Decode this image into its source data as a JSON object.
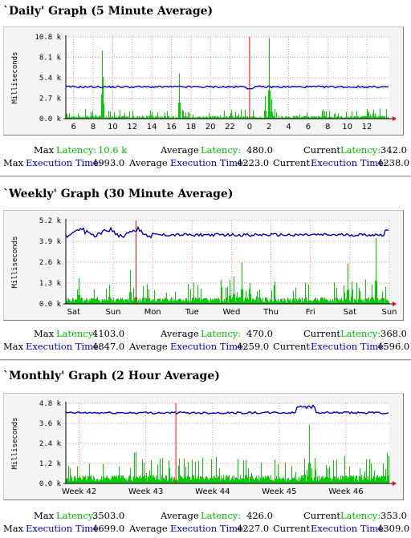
{
  "graphs": [
    {
      "title": "`Daily' Graph (5 Minute Average)",
      "stats": {
        "max_label": "Max",
        "avg_label": "Average",
        "cur_label": "Current",
        "latency_label": "Latency:",
        "exec_label": "Execution Time:",
        "max_latency": "10.6 k",
        "avg_latency": "480.0",
        "cur_latency": "342.0",
        "max_exec": "4993.0",
        "avg_exec": "4223.0",
        "cur_exec": "4238.0"
      }
    },
    {
      "title": "`Weekly' Graph (30 Minute Average)",
      "stats": {
        "max_label": "Max",
        "avg_label": "Average",
        "cur_label": "Current",
        "latency_label": "Latency:",
        "exec_label": "Execution Time:",
        "max_latency": "4103.0",
        "avg_latency": "470.0",
        "cur_latency": "368.0",
        "max_exec": "4847.0",
        "avg_exec": "4259.0",
        "cur_exec": "4596.0"
      }
    },
    {
      "title": "`Monthly' Graph (2 Hour Average)",
      "stats": {
        "max_label": "Max",
        "avg_label": "Average",
        "cur_label": "Current",
        "latency_label": "Latency:",
        "exec_label": "Execution Time:",
        "max_latency": "3503.0",
        "avg_latency": "426.0",
        "cur_latency": "353.0",
        "max_exec": "4699.0",
        "avg_exec": "4227.0",
        "cur_exec": "4309.0"
      }
    }
  ],
  "chart_data": [
    {
      "type": "area",
      "ylabel": "Milliseconds",
      "ylim": [
        0,
        10800
      ],
      "y_ticks": [
        "0.0 k",
        "2.7 k",
        "5.4 k",
        "8.1 k",
        "10.8 k"
      ],
      "categories": [
        "6",
        "8",
        "10",
        "12",
        "14",
        "16",
        "18",
        "20",
        "22",
        "0",
        "2",
        "4",
        "6",
        "8",
        "10",
        "12"
      ],
      "x_range": [
        5.2,
        38.3
      ],
      "x_tick_values": [
        6,
        8,
        10,
        12,
        14,
        16,
        18,
        20,
        22,
        24,
        26,
        28,
        30,
        32,
        34,
        36
      ],
      "now_marker": 24,
      "colors": {
        "latency": "#00cc00",
        "exec": "#0000bb",
        "marker": "#ff0000",
        "grid": "#ff7070"
      },
      "series": [
        {
          "name": "Latency",
          "peaks": [
            [
              8.9,
              9000
            ],
            [
              9.0,
              5500
            ],
            [
              16.8,
              6000
            ],
            [
              26.0,
              10600
            ],
            [
              26.2,
              2600
            ],
            [
              7.9,
              1000
            ],
            [
              14.0,
              900
            ],
            [
              13.8,
              1100
            ],
            [
              15.3,
              800
            ],
            [
              21.0,
              400
            ],
            [
              25.6,
              3000
            ]
          ],
          "baseline": 300
        },
        {
          "name": "Execution Time",
          "base": 4200,
          "noise": 250,
          "dip_at": 24,
          "dip_value": 3950
        }
      ],
      "grid": true
    },
    {
      "type": "area",
      "ylabel": "Milliseconds",
      "ylim": [
        0,
        5200
      ],
      "y_ticks": [
        "0.0 k",
        "1.3 k",
        "2.6 k",
        "3.9 k",
        "5.2 k"
      ],
      "categories": [
        "Sat",
        "Sun",
        "Mon",
        "Tue",
        "Wed",
        "Thu",
        "Fri",
        "Sat",
        "Sun"
      ],
      "x_range": [
        -0.2,
        8.0
      ],
      "x_tick_values": [
        0,
        1,
        2,
        3,
        4,
        5,
        6,
        7,
        8
      ],
      "now_marker": 1.58,
      "colors": {
        "latency": "#00cc00",
        "exec": "#0000bb",
        "marker": "#ff0000",
        "grid": "#ff7070"
      },
      "series": [
        {
          "name": "Latency",
          "peaks": [
            [
              0.12,
              1600
            ],
            [
              0.9,
              1200
            ],
            [
              1.42,
              2100
            ],
            [
              1.58,
              1200
            ],
            [
              1.9,
              900
            ],
            [
              2.35,
              700
            ],
            [
              3.95,
              1500
            ],
            [
              4.05,
              1700
            ],
            [
              4.25,
              2600
            ],
            [
              5.55,
              800
            ],
            [
              6.65,
              1000
            ],
            [
              6.95,
              2500
            ],
            [
              7.05,
              1400
            ],
            [
              7.55,
              1200
            ],
            [
              7.65,
              4100
            ],
            [
              7.25,
              800
            ]
          ],
          "baseline": 350
        },
        {
          "name": "Execution Time",
          "base": 4300,
          "noise": 180,
          "wobble_until": 2.0,
          "wobble": 350,
          "end_value": 4600
        }
      ],
      "grid": true
    },
    {
      "type": "area",
      "ylabel": "Milliseconds",
      "ylim": [
        0,
        4800
      ],
      "y_ticks": [
        "0.0 k",
        "1.2 k",
        "2.4 k",
        "3.6 k",
        "4.8 k"
      ],
      "categories": [
        "Week 42",
        "Week 43",
        "Week 44",
        "Week 45",
        "Week 46"
      ],
      "x_range": [
        -0.2,
        4.65
      ],
      "x_tick_values": [
        0,
        1,
        2,
        3,
        4
      ],
      "now_marker": 1.45,
      "colors": {
        "latency": "#00cc00",
        "exec": "#0000bb",
        "marker": "#ff0000",
        "grid": "#ff7070"
      },
      "series": [
        {
          "name": "Latency",
          "peaks": [
            [
              0.15,
              1200
            ],
            [
              0.6,
              1000
            ],
            [
              1.07,
              1400
            ],
            [
              1.25,
              1000
            ],
            [
              1.35,
              900
            ],
            [
              2.5,
              1400
            ],
            [
              3.38,
              1500
            ],
            [
              3.45,
              3500
            ],
            [
              3.7,
              1100
            ],
            [
              3.75,
              1000
            ],
            [
              4.2,
              900
            ],
            [
              4.55,
              1200
            ]
          ],
          "baseline": 420
        },
        {
          "name": "Execution Time",
          "base": 4230,
          "noise": 120,
          "bump_from": 3.25,
          "bump_to": 3.55,
          "bump_value": 4700
        }
      ],
      "grid": true
    }
  ]
}
